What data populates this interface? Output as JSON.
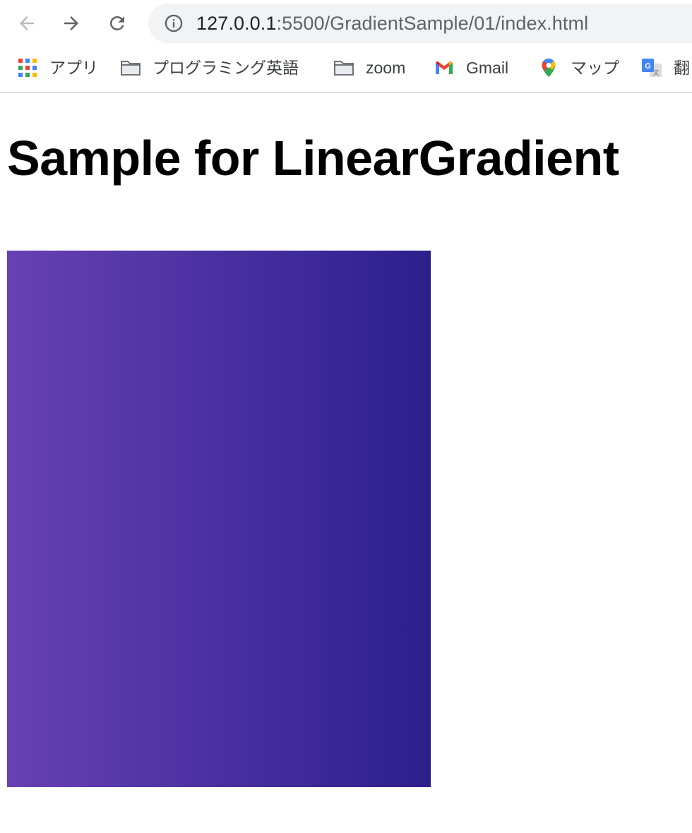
{
  "browser": {
    "url_host": "127.0.0.1",
    "url_rest": ":5500/GradientSample/01/index.html",
    "bookmarks": [
      {
        "label": "アプリ",
        "icon": "apps-grid-icon"
      },
      {
        "label": "プログラミング英語",
        "icon": "folder-icon"
      },
      {
        "label": "zoom",
        "icon": "folder-icon"
      },
      {
        "label": "Gmail",
        "icon": "gmail-icon"
      },
      {
        "label": "マップ",
        "icon": "maps-pin-icon"
      },
      {
        "label": "翻",
        "icon": "translate-icon"
      }
    ]
  },
  "page": {
    "heading": "Sample for LinearGradient",
    "gradient": {
      "start_color": "#6741b4",
      "end_color": "#2c1f8c",
      "direction": "to right"
    }
  }
}
